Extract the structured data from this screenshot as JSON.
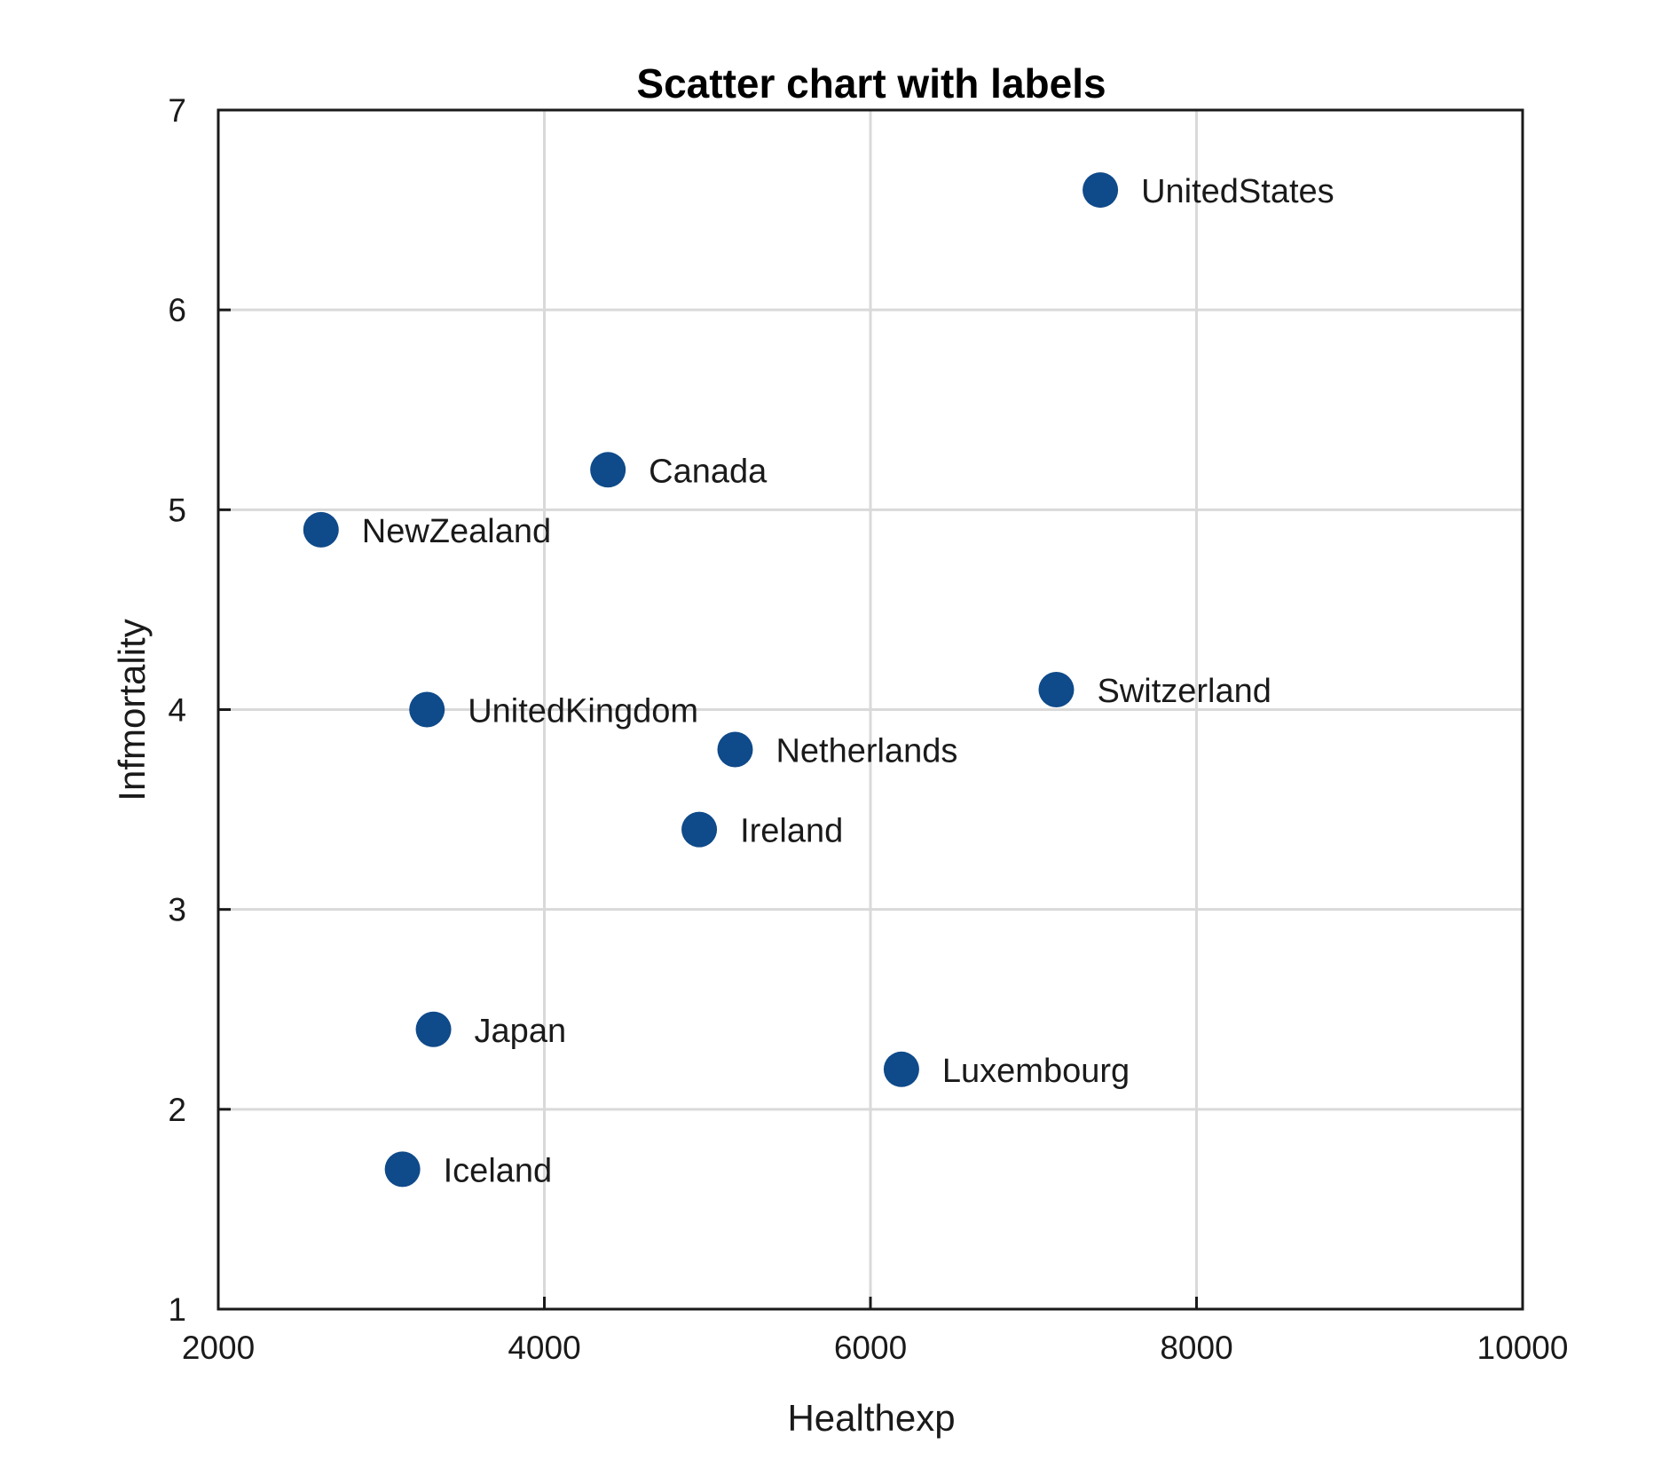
{
  "chart_data": {
    "type": "scatter",
    "title": "Scatter chart with labels",
    "xlabel": "Healthexp",
    "ylabel": "Infmortality",
    "xlim": [
      2000,
      10000
    ],
    "ylim": [
      1,
      7
    ],
    "xticks": [
      2000,
      4000,
      6000,
      8000,
      10000
    ],
    "yticks": [
      1,
      2,
      3,
      4,
      5,
      6,
      7
    ],
    "xtick_labels": [
      "2000",
      "4000",
      "6000",
      "8000",
      "10000"
    ],
    "ytick_labels": [
      "1",
      "2",
      "3",
      "4",
      "5",
      "6",
      "7"
    ],
    "grid": true,
    "legend": false,
    "marker_color": "#0f4a8a",
    "points": [
      {
        "label": "UnitedStates",
        "x": 7410,
        "y": 6.6
      },
      {
        "label": "Canada",
        "x": 4390,
        "y": 5.2
      },
      {
        "label": "NewZealand",
        "x": 2630,
        "y": 4.9
      },
      {
        "label": "Switzerland",
        "x": 7140,
        "y": 4.1
      },
      {
        "label": "UnitedKingdom",
        "x": 3280,
        "y": 4.0
      },
      {
        "label": "Netherlands",
        "x": 5170,
        "y": 3.8
      },
      {
        "label": "Ireland",
        "x": 4950,
        "y": 3.4
      },
      {
        "label": "Japan",
        "x": 3320,
        "y": 2.4
      },
      {
        "label": "Luxembourg",
        "x": 6190,
        "y": 2.2
      },
      {
        "label": "Iceland",
        "x": 3130,
        "y": 1.7
      }
    ]
  }
}
